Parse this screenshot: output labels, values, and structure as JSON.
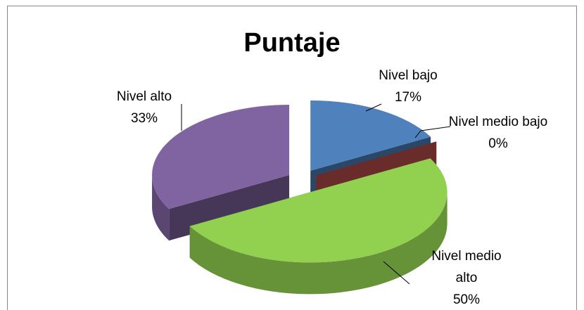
{
  "chart_data": {
    "type": "pie",
    "title": "Puntaje",
    "categories": [
      "Nivel bajo",
      "Nivel medio bajo",
      "Nivel medio alto",
      "Nivel alto"
    ],
    "values": [
      17,
      0,
      50,
      33
    ],
    "value_labels": [
      "17%",
      "0%",
      "50%",
      "33%"
    ],
    "colors": [
      "#4f81bd",
      "#c0504d",
      "#92d050",
      "#8064a2"
    ]
  }
}
